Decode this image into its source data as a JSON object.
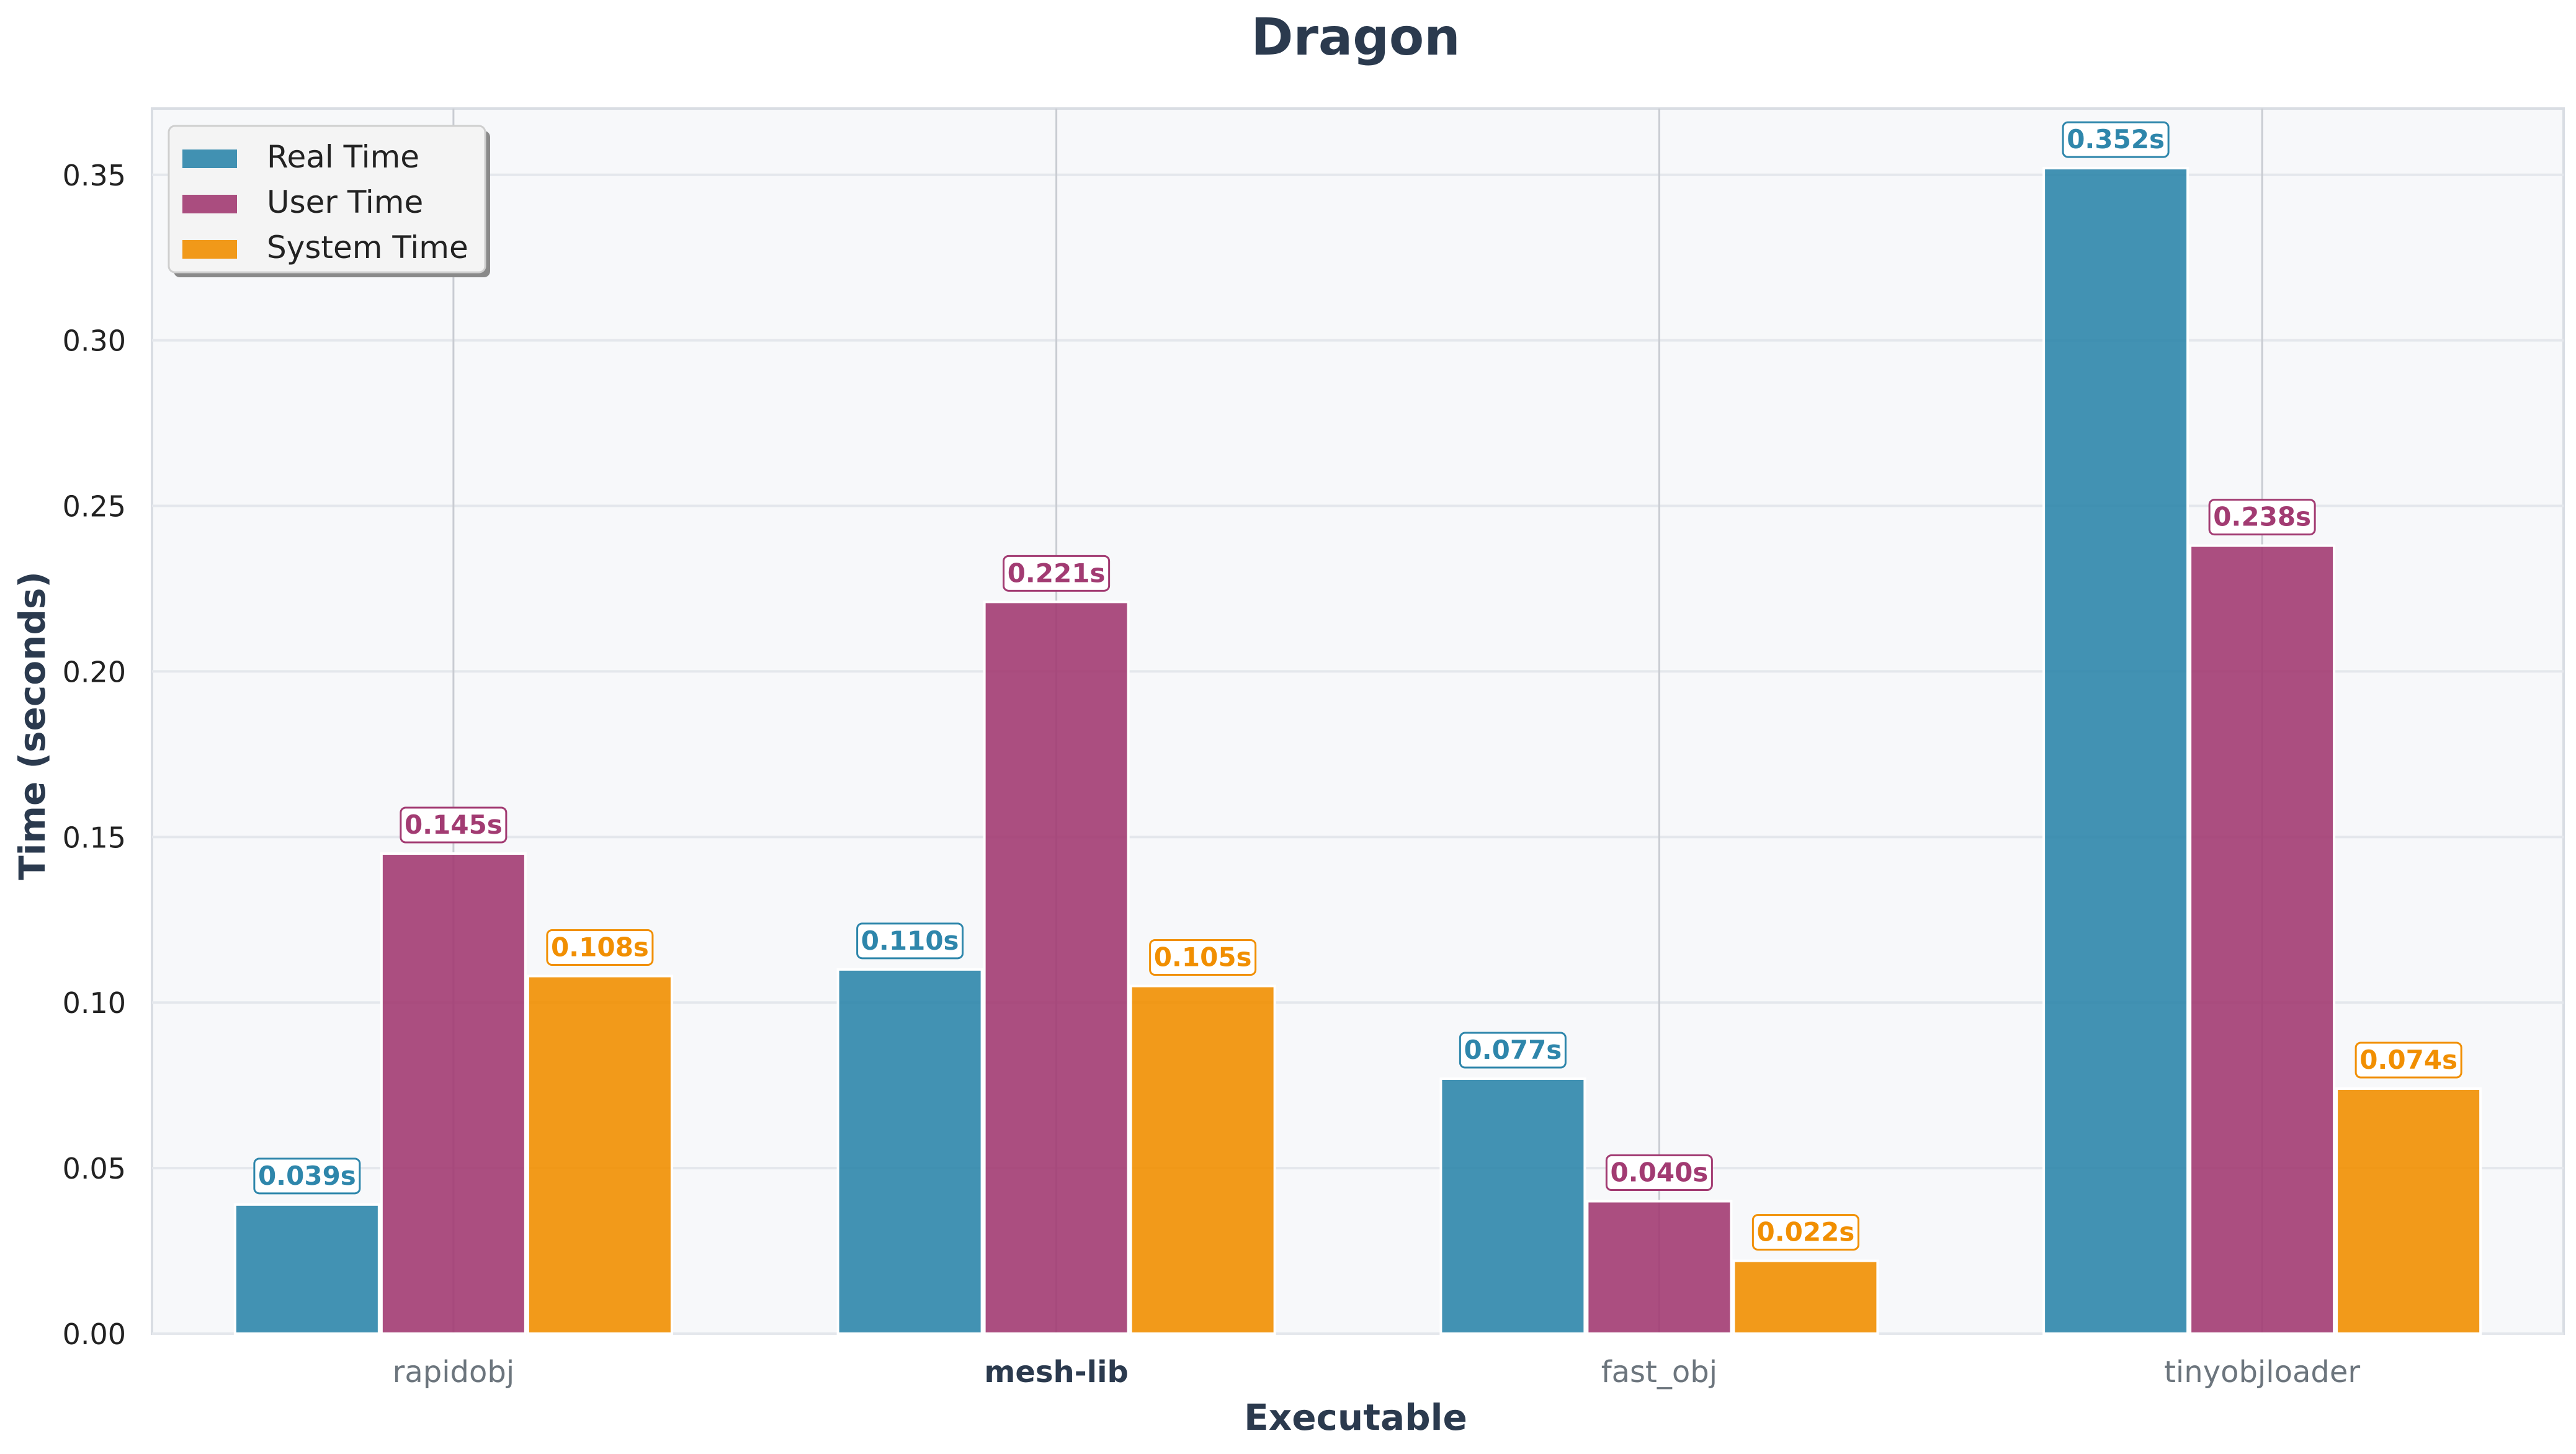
{
  "chart_data": {
    "type": "bar",
    "title": "Dragon",
    "xlabel": "Executable",
    "ylabel": "Time (seconds)",
    "categories": [
      "rapidobj",
      "mesh-lib",
      "fast_obj",
      "tinyobjloader"
    ],
    "highlighted_category": "mesh-lib",
    "series": [
      {
        "name": "Real Time",
        "color": "#2e86ab",
        "values": [
          0.039,
          0.11,
          0.077,
          0.352
        ],
        "labels": [
          "0.039s",
          "0.110s",
          "0.077s",
          "0.352s"
        ]
      },
      {
        "name": "User Time",
        "color": "#a23b72",
        "values": [
          0.145,
          0.221,
          0.04,
          0.238
        ],
        "labels": [
          "0.145s",
          "0.221s",
          "0.040s",
          "0.238s"
        ]
      },
      {
        "name": "System Time",
        "color": "#f18f01",
        "values": [
          0.108,
          0.105,
          0.022,
          0.074
        ],
        "labels": [
          "0.108s",
          "0.105s",
          "0.022s",
          "0.074s"
        ]
      }
    ],
    "ylim": [
      0,
      0.37
    ],
    "yticks": [
      "0.00",
      "0.05",
      "0.10",
      "0.15",
      "0.20",
      "0.25",
      "0.30",
      "0.35"
    ],
    "grid": true,
    "legend_position": "top-left"
  }
}
